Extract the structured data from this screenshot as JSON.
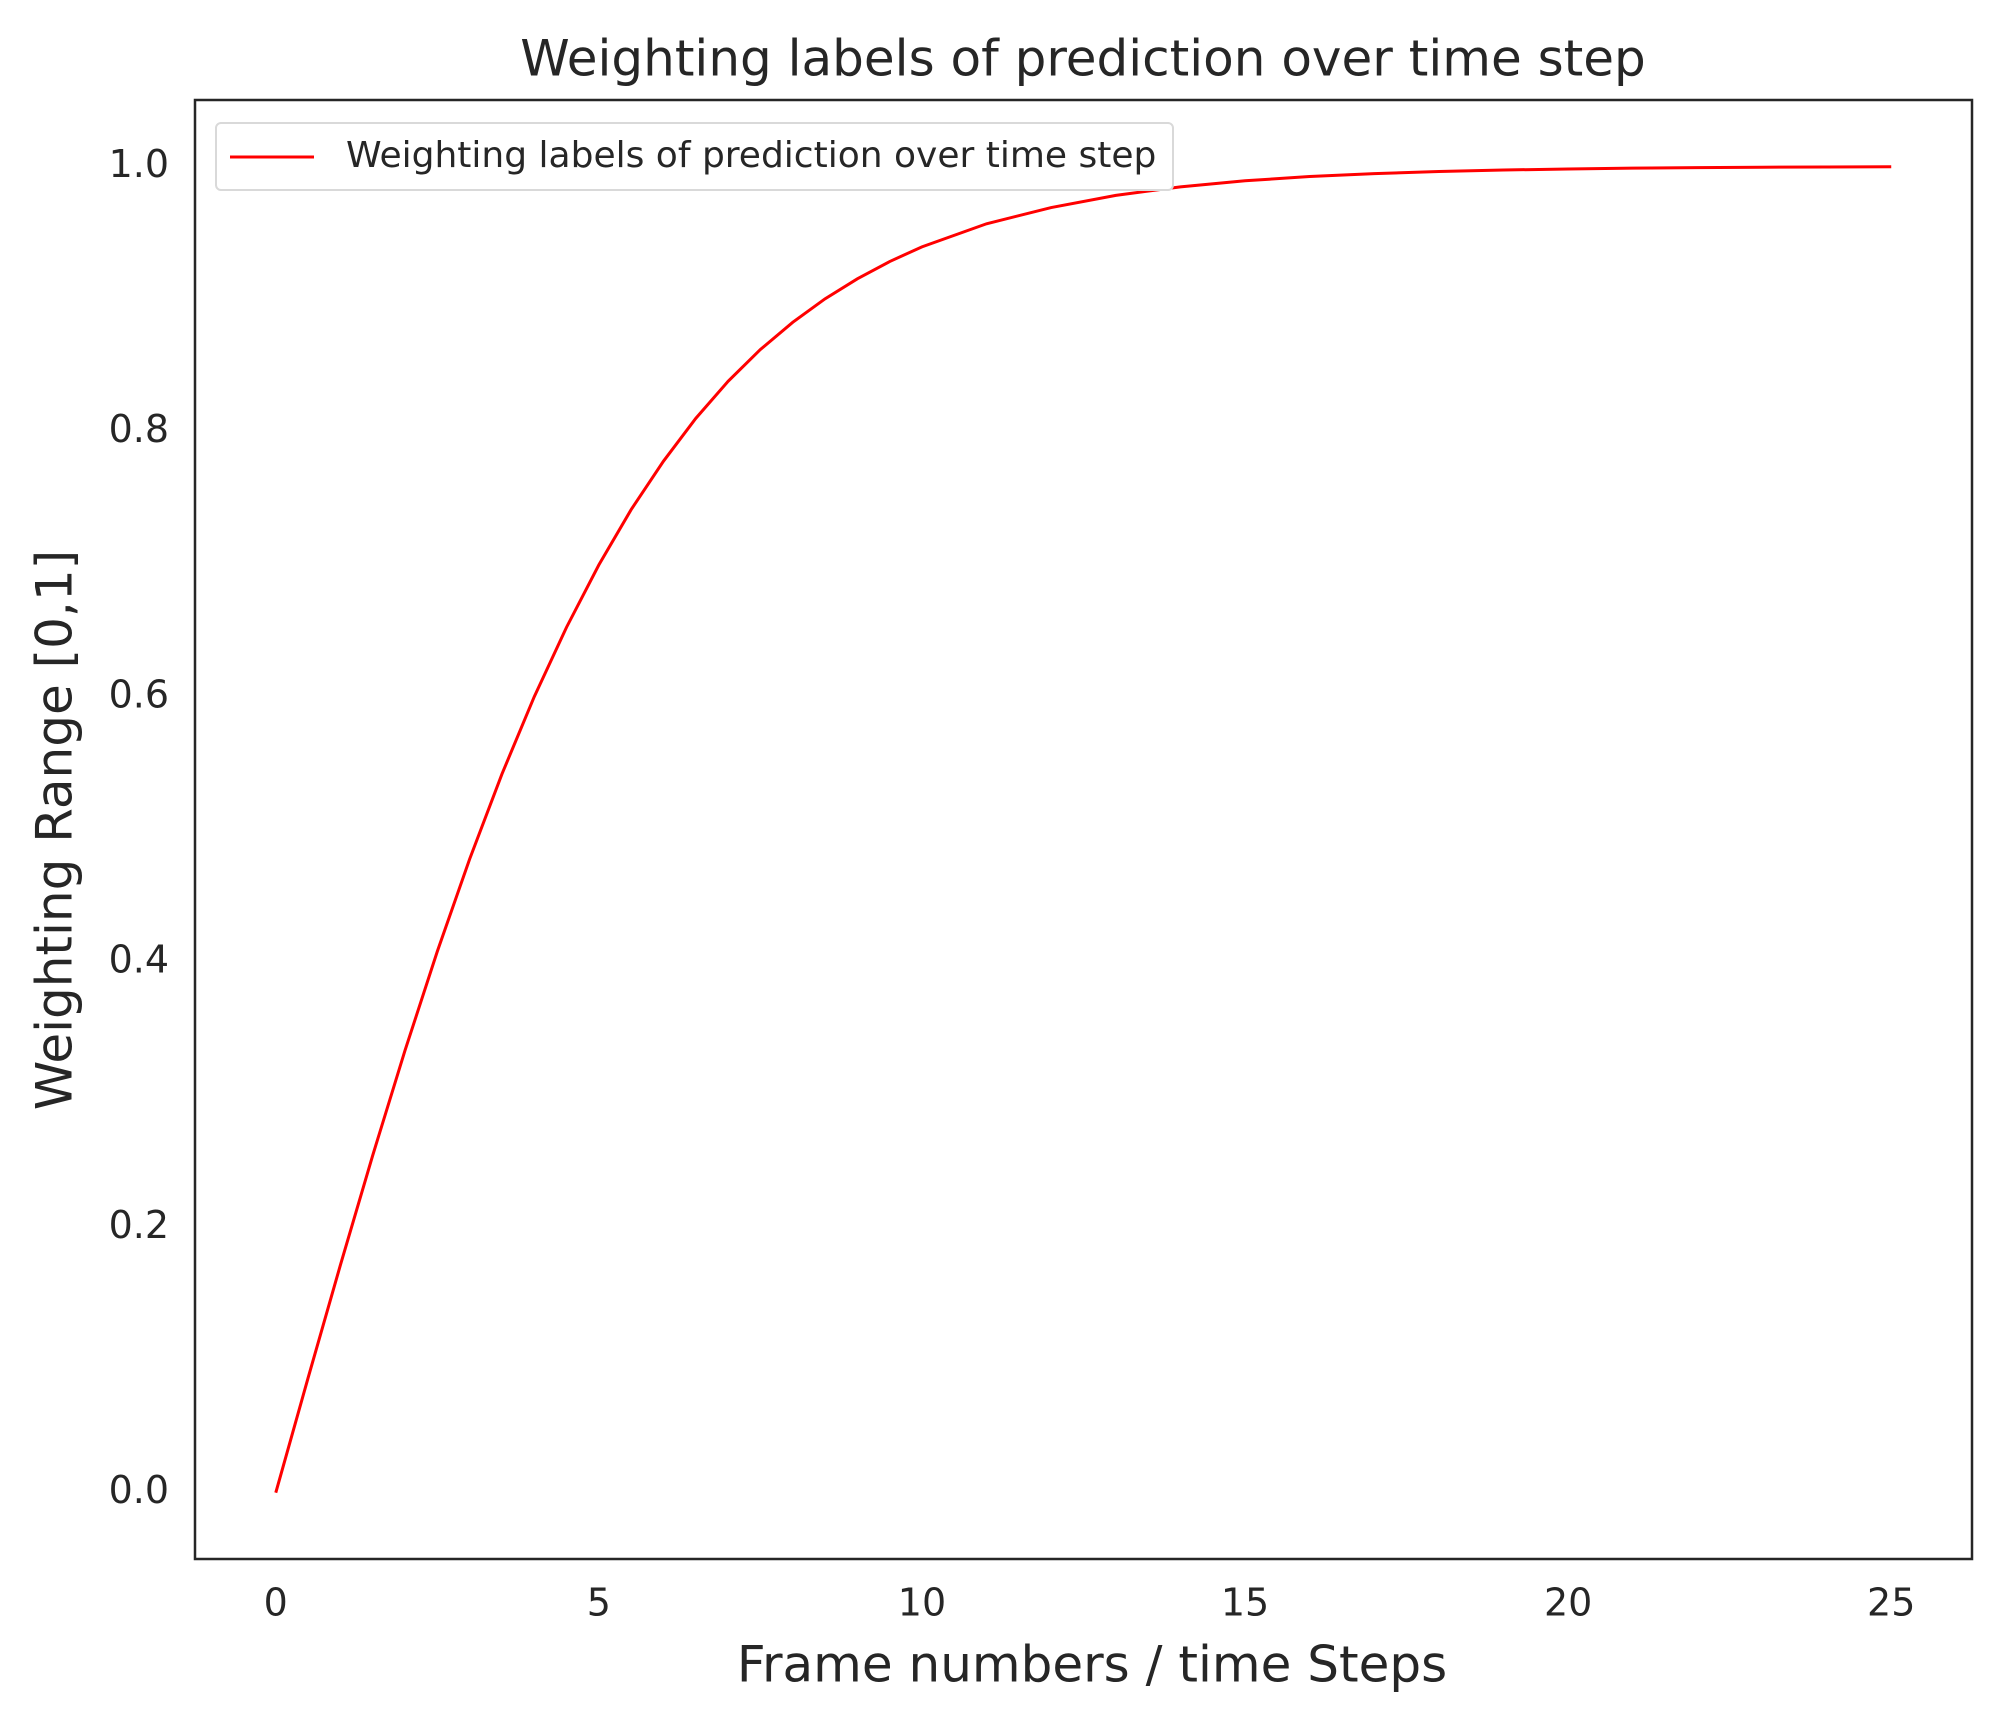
{
  "chart_data": {
    "type": "line",
    "title": "Weighting labels of prediction over time step",
    "xlabel": "Frame numbers / time Steps",
    "ylabel": "Weighting Range [0,1]",
    "x": [
      0,
      0.5,
      1,
      1.5,
      2,
      2.5,
      3,
      3.5,
      4,
      4.5,
      5,
      5.5,
      6,
      6.5,
      7,
      7.5,
      8,
      8.5,
      9,
      9.5,
      10,
      11,
      12,
      13,
      14,
      15,
      16,
      17,
      18,
      19,
      20,
      21,
      22,
      23,
      24,
      25
    ],
    "series": [
      {
        "name": "Weighting labels of prediction over time step",
        "color": "#ff0000",
        "values": [
          0,
          0.0865,
          0.1716,
          0.2543,
          0.3334,
          0.4081,
          0.4777,
          0.5418,
          0.6001,
          0.6525,
          0.6995,
          0.7412,
          0.7777,
          0.81,
          0.8379,
          0.8619,
          0.8824,
          0.9001,
          0.9152,
          0.9282,
          0.9393,
          0.9567,
          0.9689,
          0.9781,
          0.9845,
          0.9891,
          0.9923,
          0.9945,
          0.9961,
          0.9972,
          0.998,
          0.9986,
          0.999,
          0.9993,
          0.9995,
          0.9997
        ]
      }
    ],
    "xlim": [
      -1.25,
      26.25
    ],
    "xticks": [
      0,
      5,
      10,
      15,
      20,
      25
    ],
    "ylim": [
      -0.05,
      1.05
    ],
    "yticks": [
      {
        "value": 0,
        "label": "0.0"
      },
      {
        "value": 0.2,
        "label": "0.2"
      },
      {
        "value": 0.4,
        "label": "0.4"
      },
      {
        "value": 0.6,
        "label": "0.6"
      },
      {
        "value": 0.8,
        "label": "0.8"
      },
      {
        "value": 1,
        "label": "1.0"
      }
    ],
    "grid": false,
    "legend": "upper left"
  }
}
